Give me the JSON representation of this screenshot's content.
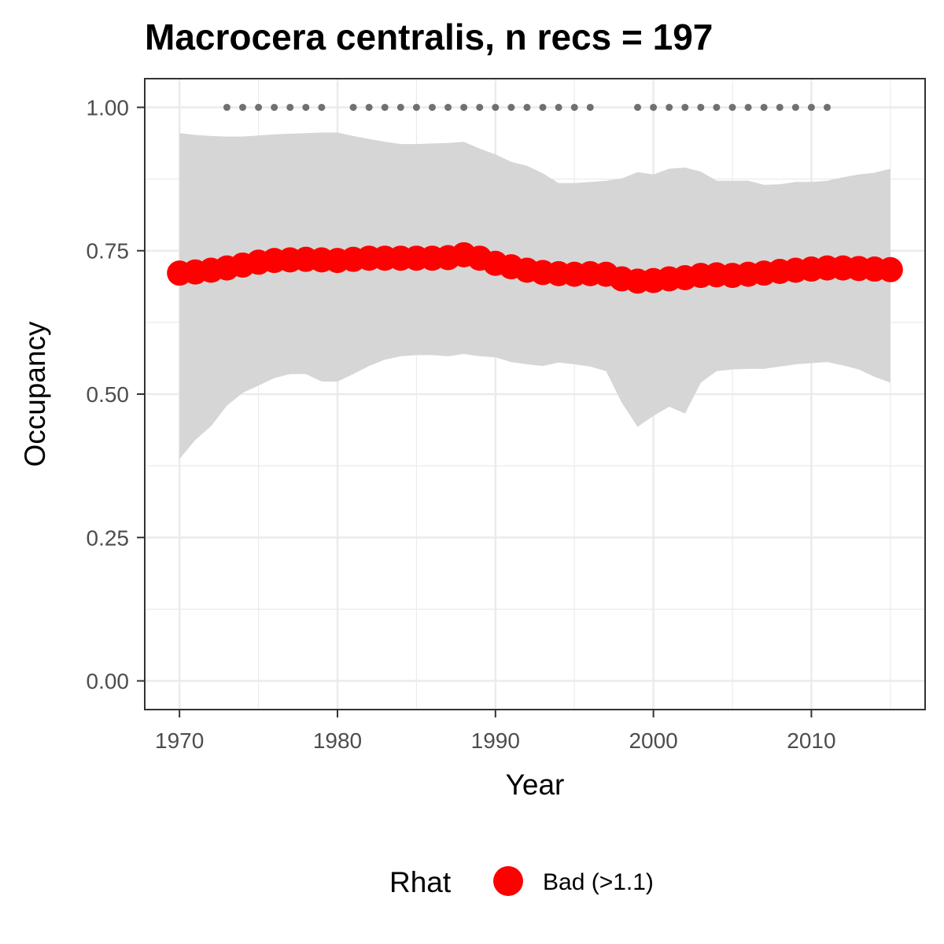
{
  "chart_data": {
    "type": "line",
    "title": "Macrocera centralis, n recs = 197",
    "xlabel": "Year",
    "ylabel": "Occupancy",
    "xlim": [
      1967.8,
      2017.2
    ],
    "ylim": [
      -0.05,
      1.05
    ],
    "x_ticks": [
      1970,
      1980,
      1990,
      2000,
      2010
    ],
    "x_tick_labels": [
      "1970",
      "1980",
      "1990",
      "2000",
      "2010"
    ],
    "y_ticks": [
      0,
      0.25,
      0.5,
      0.75,
      1.0
    ],
    "y_tick_labels": [
      "0.00",
      "0.25",
      "0.50",
      "0.75",
      "1.00"
    ],
    "grid": true,
    "legend": {
      "title": "Rhat",
      "position": "bottom",
      "entries": [
        {
          "label": "Bad (>1.1)",
          "color": "#ff0000"
        }
      ]
    },
    "colors": {
      "mean_points": "#ff0000",
      "ribbon": "#d6d6d6",
      "record_dots": "#707070",
      "panel_border": "#333333",
      "grid": "#ebebeb"
    },
    "years": [
      1970,
      1971,
      1972,
      1973,
      1974,
      1975,
      1976,
      1977,
      1978,
      1979,
      1980,
      1981,
      1982,
      1983,
      1984,
      1985,
      1986,
      1987,
      1988,
      1989,
      1990,
      1991,
      1992,
      1993,
      1994,
      1995,
      1996,
      1997,
      1998,
      1999,
      2000,
      2001,
      2002,
      2003,
      2004,
      2005,
      2006,
      2007,
      2008,
      2009,
      2010,
      2011,
      2012,
      2013,
      2014,
      2015
    ],
    "series": [
      {
        "name": "Bad (>1.1)",
        "values": [
          0.711,
          0.713,
          0.716,
          0.72,
          0.725,
          0.73,
          0.733,
          0.734,
          0.735,
          0.734,
          0.733,
          0.735,
          0.737,
          0.737,
          0.737,
          0.737,
          0.737,
          0.738,
          0.743,
          0.737,
          0.728,
          0.722,
          0.716,
          0.712,
          0.71,
          0.709,
          0.71,
          0.709,
          0.701,
          0.697,
          0.698,
          0.701,
          0.703,
          0.707,
          0.708,
          0.707,
          0.709,
          0.711,
          0.714,
          0.716,
          0.718,
          0.72,
          0.72,
          0.719,
          0.718,
          0.717
        ]
      }
    ],
    "ribbon_upper": [
      0.955,
      0.952,
      0.95,
      0.949,
      0.949,
      0.951,
      0.953,
      0.954,
      0.955,
      0.956,
      0.956,
      0.95,
      0.945,
      0.94,
      0.936,
      0.936,
      0.937,
      0.938,
      0.94,
      0.928,
      0.918,
      0.905,
      0.898,
      0.885,
      0.868,
      0.868,
      0.87,
      0.872,
      0.876,
      0.887,
      0.883,
      0.893,
      0.895,
      0.888,
      0.872,
      0.872,
      0.872,
      0.865,
      0.866,
      0.87,
      0.87,
      0.872,
      0.878,
      0.883,
      0.886,
      0.893
    ],
    "ribbon_lower": [
      0.387,
      0.42,
      0.444,
      0.48,
      0.502,
      0.515,
      0.528,
      0.535,
      0.535,
      0.522,
      0.522,
      0.535,
      0.549,
      0.56,
      0.566,
      0.568,
      0.568,
      0.566,
      0.57,
      0.566,
      0.564,
      0.556,
      0.552,
      0.549,
      0.555,
      0.552,
      0.548,
      0.54,
      0.485,
      0.443,
      0.462,
      0.478,
      0.466,
      0.52,
      0.54,
      0.543,
      0.544,
      0.544,
      0.548,
      0.552,
      0.554,
      0.556,
      0.55,
      0.543,
      0.53,
      0.52
    ],
    "record_years": [
      1973,
      1974,
      1975,
      1976,
      1977,
      1978,
      1979,
      1981,
      1982,
      1983,
      1984,
      1985,
      1986,
      1987,
      1988,
      1989,
      1990,
      1991,
      1992,
      1993,
      1994,
      1995,
      1996,
      1999,
      2000,
      2001,
      2002,
      2003,
      2004,
      2005,
      2006,
      2007,
      2008,
      2009,
      2010,
      2011
    ],
    "record_y": 1.0
  }
}
